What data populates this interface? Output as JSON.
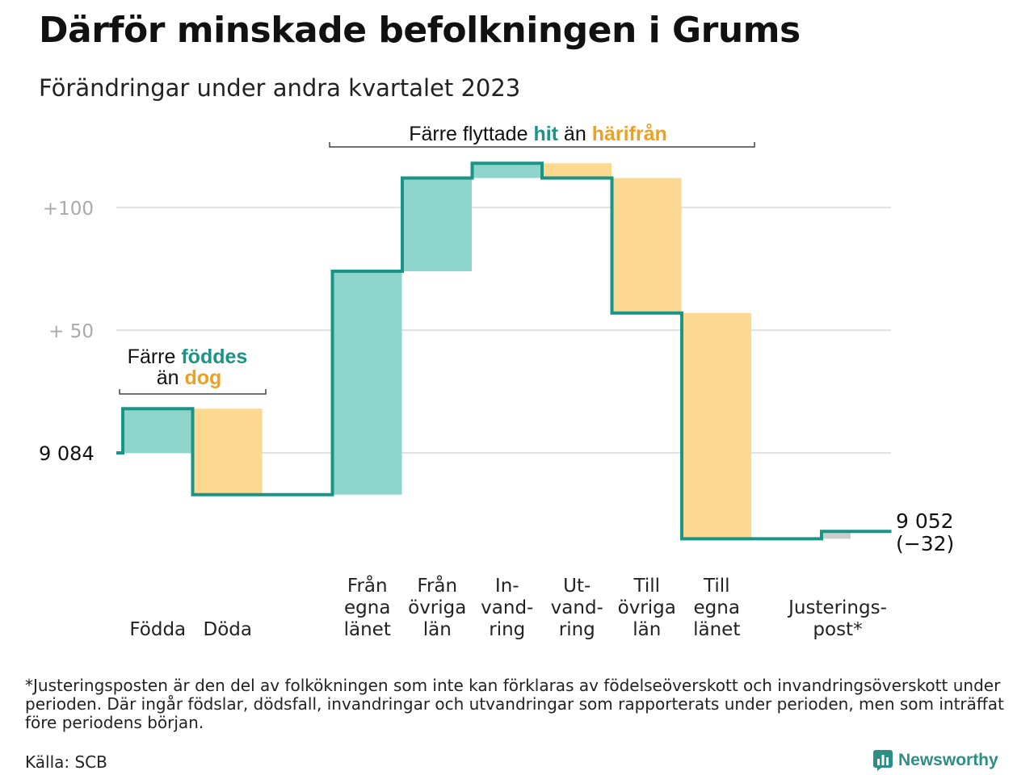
{
  "title": "Därför minskade befolkningen i Grums",
  "subtitle": "Förändringar under andra kvartalet 2023",
  "footnote": "*Justeringsposten är den del av folkökningen som inte kan förklaras av födelseöverskott och invandringsöverskott under perioden. Där ingår födslar, dödsfall, invandringar och utvandringar som rapporterats under perioden, men som inträffat före periodens början.",
  "source": "Källa: SCB",
  "brand": "Newsworthy",
  "colors": {
    "increase": "#8ed5cc",
    "decrease": "#fcd891",
    "adjustment": "#cccccc",
    "line": "#1a9487",
    "teal_text": "#1a9487",
    "orange_text": "#f0a020"
  },
  "chart_data": {
    "type": "waterfall",
    "start_value": 9084,
    "start_label": "9 084",
    "end_value": 9052,
    "end_label": "9 052",
    "end_change_label": "(−32)",
    "y_ticks": [
      {
        "value": 100,
        "label": "+100"
      },
      {
        "value": 50,
        "label": "+  50"
      }
    ],
    "ylim": [
      -40,
      120
    ],
    "grid": true,
    "steps": [
      {
        "label": "Födda",
        "label_lines": [
          "Födda"
        ],
        "delta": 18,
        "kind": "increase"
      },
      {
        "label": "Döda",
        "label_lines": [
          "Döda"
        ],
        "delta": -35,
        "kind": "decrease"
      },
      {
        "label": "gap",
        "label_lines": [],
        "delta": 0,
        "kind": "gap"
      },
      {
        "label": "Från egna länet",
        "label_lines": [
          "Från",
          "egna",
          "länet"
        ],
        "delta": 91,
        "kind": "increase"
      },
      {
        "label": "Från övriga län",
        "label_lines": [
          "Från",
          "övriga",
          "län"
        ],
        "delta": 38,
        "kind": "increase"
      },
      {
        "label": "Invandring",
        "label_lines": [
          "In-",
          "vand-",
          "ring"
        ],
        "delta": 6,
        "kind": "increase"
      },
      {
        "label": "Utvandring",
        "label_lines": [
          "Ut-",
          "vand-",
          "ring"
        ],
        "delta": -6,
        "kind": "decrease"
      },
      {
        "label": "Till övriga län",
        "label_lines": [
          "Till",
          "övriga",
          "län"
        ],
        "delta": -55,
        "kind": "decrease"
      },
      {
        "label": "Till egna länet",
        "label_lines": [
          "Till",
          "egna",
          "länet"
        ],
        "delta": -92,
        "kind": "decrease"
      },
      {
        "label": "gap",
        "label_lines": [],
        "delta": 0,
        "kind": "gap"
      },
      {
        "label": "Justeringspost*",
        "label_lines": [
          "Justerings-",
          "post*"
        ],
        "delta": 3,
        "kind": "adjustment"
      }
    ],
    "annotations": [
      {
        "id": "births",
        "line1": "Färre ",
        "hl1": "föddes",
        "line2": "än ",
        "hl2": "dog"
      },
      {
        "id": "moves",
        "line1": "Färre flyttade ",
        "hl1": "hit",
        "line2": " än ",
        "hl2": "härifrån"
      }
    ]
  }
}
